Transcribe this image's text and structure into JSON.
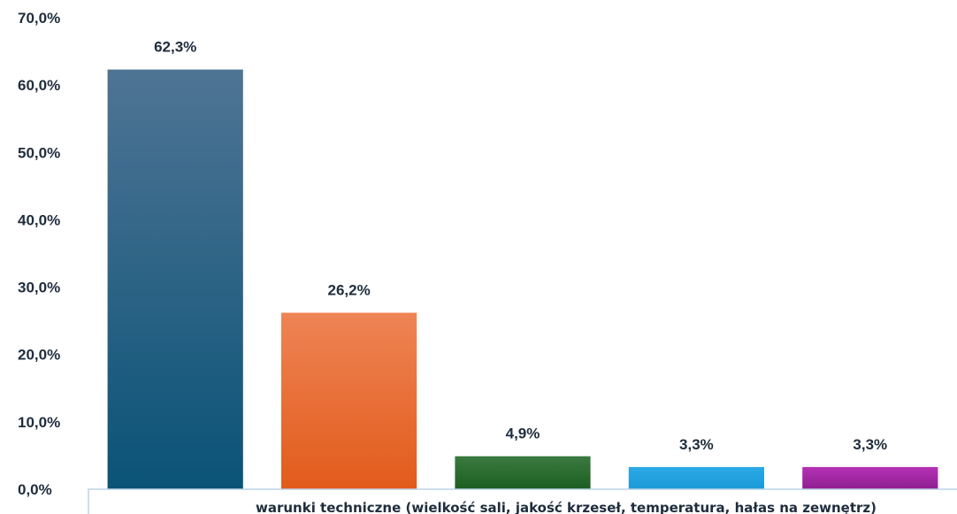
{
  "chart_data": {
    "type": "bar",
    "title": "",
    "xlabel": "",
    "ylabel": "",
    "ylim": [
      0,
      70
    ],
    "y_ticks": [
      "0,0%",
      "10,0%",
      "20,0%",
      "30,0%",
      "40,0%",
      "50,0%",
      "60,0%",
      "70,0%"
    ],
    "category_label": "warunki techniczne (wielkość sali, jakość krzeseł, temperatura, hałas na zewnętrz)",
    "grid": false,
    "legend": "none",
    "values": [
      62.3,
      26.2,
      4.9,
      3.3,
      3.3
    ],
    "data_labels": [
      "62,3%",
      "26,2%",
      "4,9%",
      "3,3%",
      "3,3%"
    ],
    "colors": [
      {
        "top": "#4f7494",
        "bottom": "#0a5377"
      },
      {
        "top": "#ee8455",
        "bottom": "#e25b1b"
      },
      {
        "top": "#3b7a40",
        "bottom": "#1b5e20"
      },
      {
        "top": "#2aa9e6",
        "bottom": "#1c9ad6"
      },
      {
        "top": "#b531b5",
        "bottom": "#8e1f91"
      }
    ]
  }
}
